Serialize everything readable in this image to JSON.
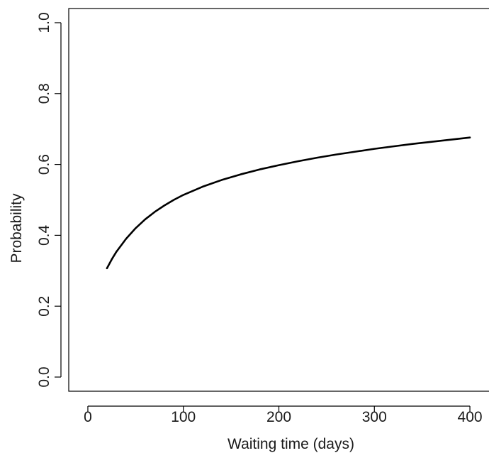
{
  "chart_data": {
    "type": "line",
    "title": "",
    "xlabel": "Waiting time (days)",
    "ylabel": "Probability",
    "xlim": [
      -20,
      420
    ],
    "ylim": [
      -0.04,
      1.04
    ],
    "grid": false,
    "legend": "none",
    "x_ticks": [
      0,
      100,
      200,
      300,
      400
    ],
    "x_tick_labels": [
      "0",
      "100",
      "200",
      "300",
      "400"
    ],
    "y_ticks": [
      0.0,
      0.2,
      0.4,
      0.6,
      0.8,
      1.0
    ],
    "y_tick_labels": [
      "0.0",
      "0.2",
      "0.4",
      "0.6",
      "0.8",
      "1.0"
    ],
    "line_color": "#000000",
    "series": [
      {
        "x": [
          20,
          25,
          30,
          40,
          50,
          60,
          70,
          80,
          90,
          100,
          120,
          140,
          160,
          180,
          200,
          220,
          240,
          260,
          280,
          300,
          320,
          340,
          360,
          380,
          400
        ],
        "y": [
          0.307,
          0.332,
          0.354,
          0.39,
          0.42,
          0.445,
          0.466,
          0.484,
          0.5,
          0.514,
          0.537,
          0.556,
          0.572,
          0.586,
          0.598,
          0.609,
          0.619,
          0.628,
          0.636,
          0.644,
          0.651,
          0.658,
          0.664,
          0.67,
          0.676
        ]
      }
    ]
  }
}
